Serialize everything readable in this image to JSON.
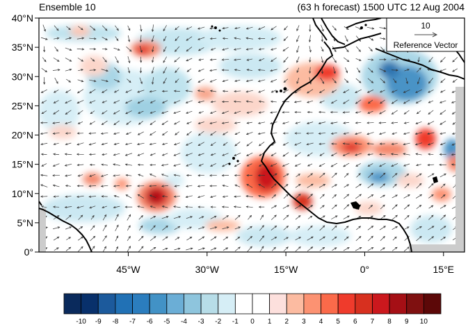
{
  "header": {
    "left_title": "Ensemble 10",
    "right_title": "(63 h forecast) 1500 UTC 12 Aug 2004"
  },
  "map": {
    "lon_range": [
      -62,
      19
    ],
    "lat_range": [
      0,
      40
    ],
    "lat_ticks": [
      {
        "value": 0,
        "label": "0°"
      },
      {
        "value": 5,
        "label": "5°N"
      },
      {
        "value": 10,
        "label": "10°N"
      },
      {
        "value": 15,
        "label": "15°N"
      },
      {
        "value": 20,
        "label": "20°N"
      },
      {
        "value": 25,
        "label": "25°N"
      },
      {
        "value": 30,
        "label": "30°N"
      },
      {
        "value": 35,
        "label": "35°N"
      },
      {
        "value": 40,
        "label": "40°N"
      }
    ],
    "lon_ticks": [
      {
        "value": -45,
        "label": "45°W"
      },
      {
        "value": -30,
        "label": "30°W"
      },
      {
        "value": -15,
        "label": "15°W"
      },
      {
        "value": 0,
        "label": "0°"
      },
      {
        "value": 15,
        "label": "15°E"
      }
    ],
    "colors": {
      "land_mask": "#cccccc",
      "coastline": "#000000",
      "vector": "#333333"
    }
  },
  "reference_vector": {
    "magnitude": "10",
    "label": "Reference Vector"
  },
  "colorbar": {
    "labels": [
      "-10",
      "-9",
      "-8",
      "-7",
      "-6",
      "-5",
      "-4",
      "-3",
      "-2",
      "-1",
      "0",
      "1",
      "2",
      "3",
      "4",
      "5",
      "6",
      "7",
      "8",
      "9",
      "10"
    ],
    "colors": [
      "#0a2a5c",
      "#08306b",
      "#1c5a9c",
      "#2171b5",
      "#2b7dbe",
      "#4292c6",
      "#6baed6",
      "#8ec5dd",
      "#b7dde8",
      "#d6eef6",
      "#ffffff",
      "#ffffff",
      "#fde0dd",
      "#fcbba1",
      "#fc9272",
      "#fb6a4a",
      "#ef3b2c",
      "#d7301f",
      "#cb181d",
      "#a50f15",
      "#7f1010",
      "#5c0808"
    ]
  }
}
